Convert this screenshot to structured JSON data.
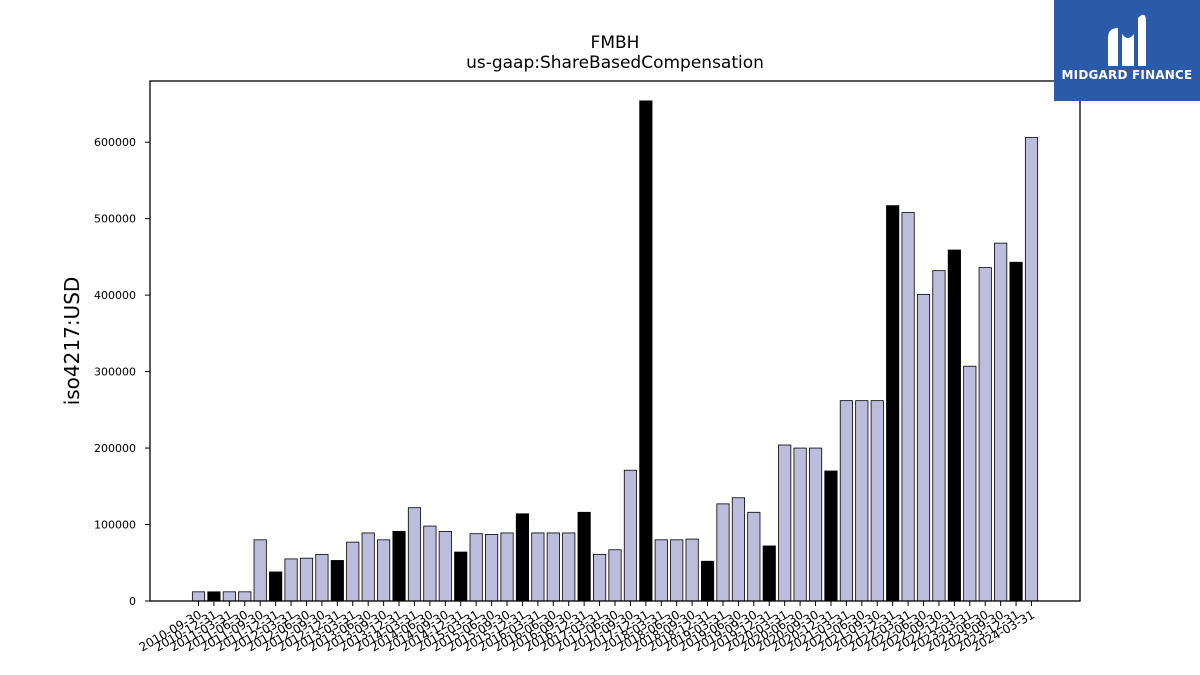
{
  "chart_data": {
    "type": "bar",
    "title": "FMBH",
    "subtitle": "us-gaap:ShareBasedCompensation",
    "ylabel": "iso4217:USD",
    "xlabel": "",
    "ylim": [
      0,
      680000
    ],
    "yticks": [
      0,
      100000,
      200000,
      300000,
      400000,
      500000,
      600000
    ],
    "grid": false,
    "legend": "none",
    "colors": {
      "quarterly": "#bcbddc",
      "annual": "#000000",
      "edge": "#000000"
    },
    "categories": [
      "2010-09-30",
      "2010-12-31",
      "2011-03-31",
      "2011-06-30",
      "2011-09-30",
      "2011-12-31",
      "2012-03-31",
      "2012-06-30",
      "2012-09-30",
      "2012-12-31",
      "2013-03-31",
      "2013-06-30",
      "2013-09-30",
      "2013-12-31",
      "2014-03-31",
      "2014-06-30",
      "2014-09-30",
      "2014-12-31",
      "2015-03-31",
      "2015-06-30",
      "2015-09-30",
      "2015-12-31",
      "2016-03-31",
      "2016-06-30",
      "2016-09-30",
      "2016-12-31",
      "2017-03-31",
      "2017-06-30",
      "2017-09-30",
      "2017-12-31",
      "2018-03-31",
      "2018-06-30",
      "2018-09-30",
      "2018-12-31",
      "2019-03-31",
      "2019-06-30",
      "2019-09-30",
      "2019-12-31",
      "2020-03-31",
      "2020-06-30",
      "2020-09-30",
      "2020-12-31",
      "2021-03-31",
      "2021-06-30",
      "2021-09-30",
      "2021-12-31",
      "2022-03-31",
      "2022-06-30",
      "2022-09-30",
      "2022-12-31",
      "2023-03-31",
      "2023-06-30",
      "2023-09-30",
      "2023-12-31",
      "2024-03-31"
    ],
    "values": [
      12000,
      12000,
      12000,
      12000,
      80000,
      38000,
      55000,
      56000,
      61000,
      53000,
      77000,
      89000,
      80000,
      91000,
      122000,
      98000,
      91000,
      64000,
      88000,
      87000,
      89000,
      114000,
      89000,
      89000,
      89000,
      116000,
      61000,
      67000,
      171000,
      654000,
      80000,
      80000,
      81000,
      52000,
      127000,
      135000,
      116000,
      72000,
      204000,
      200000,
      200000,
      170000,
      262000,
      262000,
      262000,
      517000,
      508000,
      401000,
      432000,
      459000,
      307000,
      436000,
      468000,
      443000,
      606000
    ],
    "annual": [
      false,
      true,
      false,
      false,
      false,
      true,
      false,
      false,
      false,
      true,
      false,
      false,
      false,
      true,
      false,
      false,
      false,
      true,
      false,
      false,
      false,
      true,
      false,
      false,
      false,
      true,
      false,
      false,
      false,
      true,
      false,
      false,
      false,
      true,
      false,
      false,
      false,
      true,
      false,
      false,
      false,
      true,
      false,
      false,
      false,
      true,
      false,
      false,
      false,
      true,
      false,
      false,
      false,
      true,
      false
    ]
  },
  "logo": {
    "text": "MIDGARD FINANCE"
  }
}
